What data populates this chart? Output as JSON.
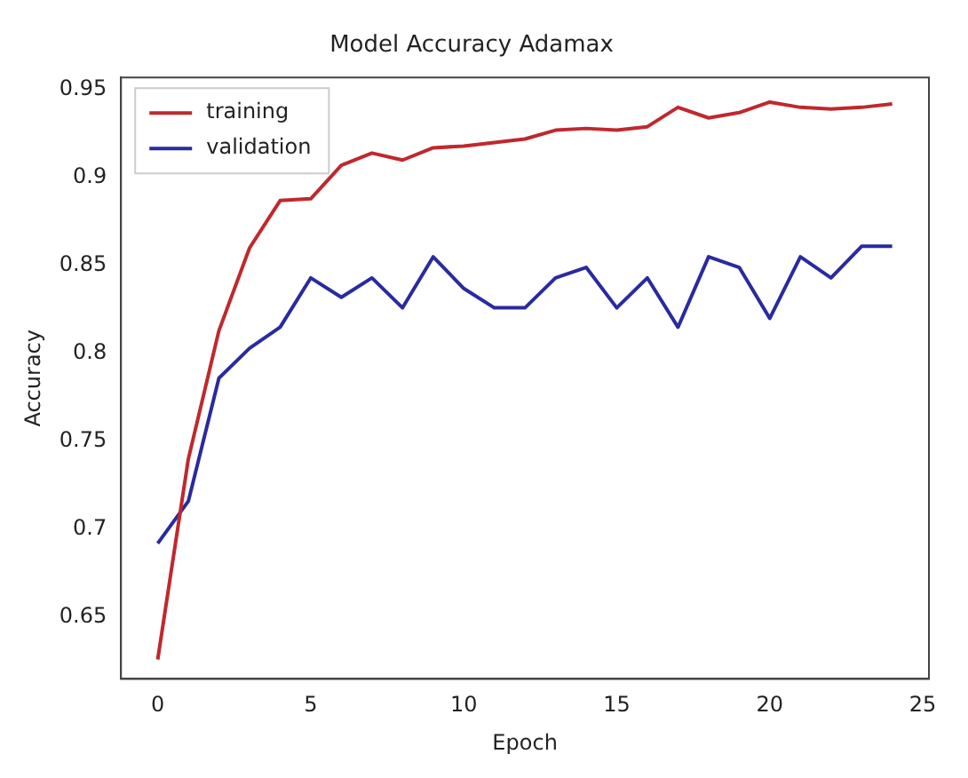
{
  "chart_data": {
    "type": "line",
    "title": "Model Accuracy Adamax",
    "xlabel": "Epoch",
    "ylabel": "Accuracy",
    "x": [
      0,
      1,
      2,
      3,
      4,
      5,
      6,
      7,
      8,
      9,
      10,
      11,
      12,
      13,
      14,
      15,
      16,
      17,
      18,
      19,
      20,
      21,
      22,
      23,
      24
    ],
    "series": [
      {
        "name": "training",
        "color": "#c0282d",
        "values": [
          0.626,
          0.74,
          0.813,
          0.86,
          0.887,
          0.888,
          0.907,
          0.914,
          0.91,
          0.917,
          0.918,
          0.92,
          0.922,
          0.927,
          0.928,
          0.927,
          0.929,
          0.94,
          0.934,
          0.937,
          0.943,
          0.94,
          0.939,
          0.94,
          0.942
        ]
      },
      {
        "name": "validation",
        "color": "#2a2aa0",
        "values": [
          0.692,
          0.716,
          0.786,
          0.803,
          0.815,
          0.843,
          0.832,
          0.843,
          0.826,
          0.855,
          0.837,
          0.826,
          0.826,
          0.843,
          0.849,
          0.826,
          0.843,
          0.815,
          0.855,
          0.849,
          0.82,
          0.855,
          0.843,
          0.861,
          0.861
        ]
      }
    ],
    "xlim": [
      -1.2,
      25.2
    ],
    "xticks": [
      0,
      5,
      10,
      15,
      20,
      25
    ],
    "ylim": [
      0.615,
      0.957
    ],
    "yticks": [
      0.65,
      0.7,
      0.75,
      0.8,
      0.85,
      0.9,
      0.95
    ],
    "grid": false,
    "legend": "top left",
    "marker": "none",
    "line_style": "solid"
  }
}
